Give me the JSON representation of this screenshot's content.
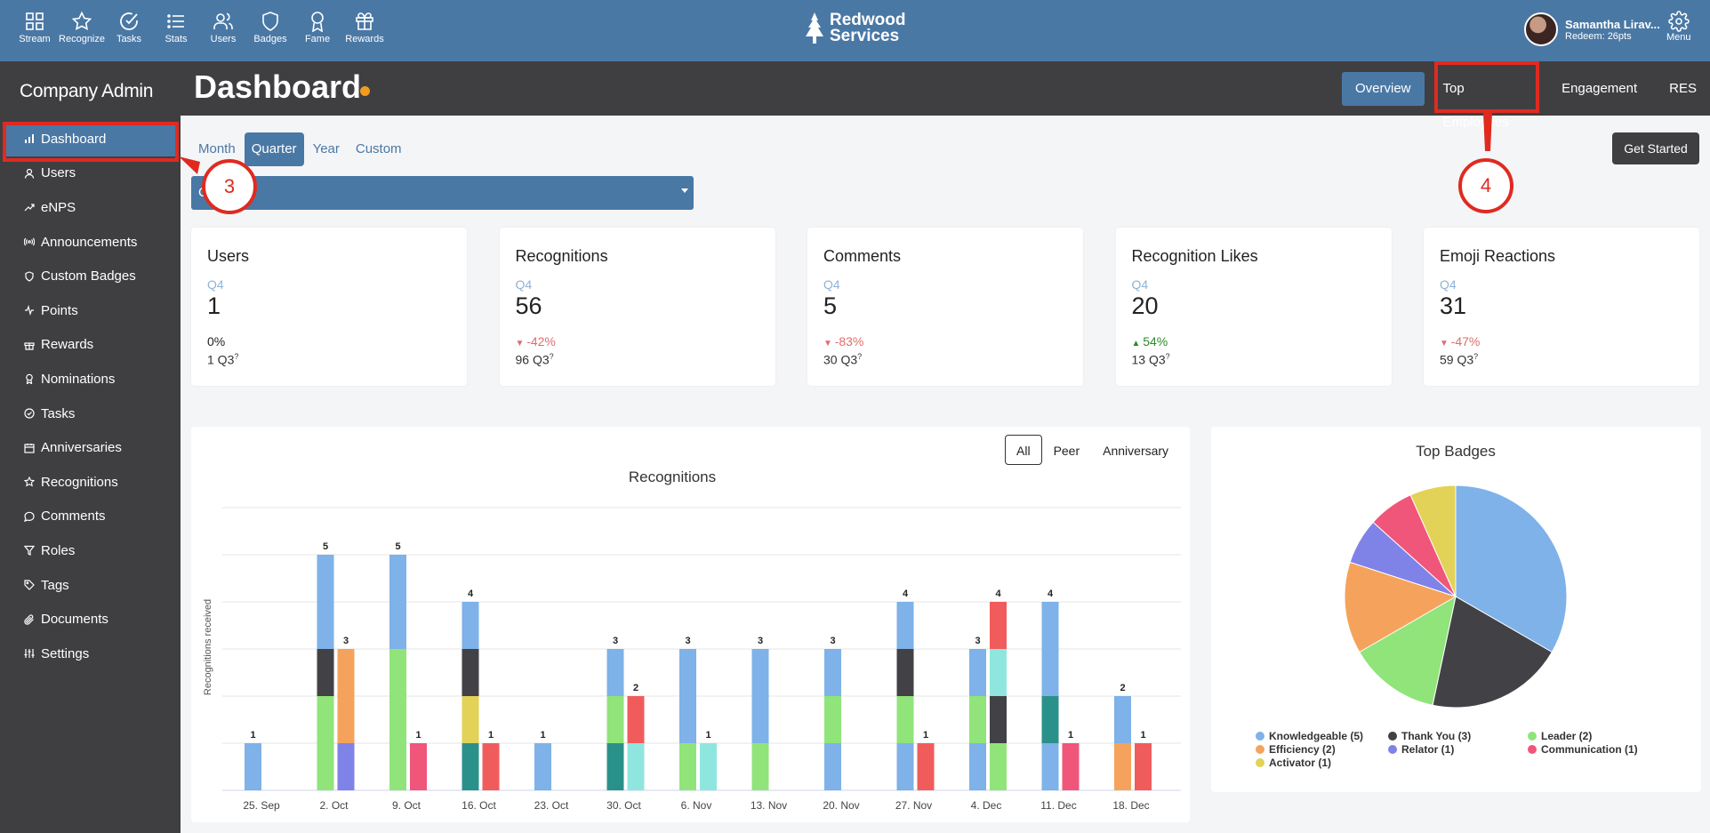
{
  "topnav": [
    {
      "label": "Stream",
      "icon": "grid-icon"
    },
    {
      "label": "Recognize",
      "icon": "star-icon"
    },
    {
      "label": "Tasks",
      "icon": "check-circle-icon"
    },
    {
      "label": "Stats",
      "icon": "list-icon"
    },
    {
      "label": "Users",
      "icon": "users-icon"
    },
    {
      "label": "Badges",
      "icon": "shield-icon"
    },
    {
      "label": "Fame",
      "icon": "award-icon"
    },
    {
      "label": "Rewards",
      "icon": "gift-icon"
    }
  ],
  "brand": {
    "line1": "Redwood",
    "line2": "Services"
  },
  "user": {
    "name": "Samantha Lirav...",
    "redeem": "Redeem: 26pts"
  },
  "menu_label": "Menu",
  "sidebar": {
    "title": "Company Admin",
    "items": [
      {
        "label": "Dashboard",
        "icon": "bar-chart-icon"
      },
      {
        "label": "Users",
        "icon": "user-icon"
      },
      {
        "label": "eNPS",
        "icon": "trend-icon"
      },
      {
        "label": "Announcements",
        "icon": "broadcast-icon"
      },
      {
        "label": "Custom Badges",
        "icon": "shield-icon"
      },
      {
        "label": "Points",
        "icon": "pulse-icon"
      },
      {
        "label": "Rewards",
        "icon": "gift-icon"
      },
      {
        "label": "Nominations",
        "icon": "award-icon"
      },
      {
        "label": "Tasks",
        "icon": "check-circle-icon"
      },
      {
        "label": "Anniversaries",
        "icon": "calendar-icon"
      },
      {
        "label": "Recognitions",
        "icon": "star-icon"
      },
      {
        "label": "Comments",
        "icon": "comment-icon"
      },
      {
        "label": "Roles",
        "icon": "filter-icon"
      },
      {
        "label": "Tags",
        "icon": "tag-icon"
      },
      {
        "label": "Documents",
        "icon": "paperclip-icon"
      },
      {
        "label": "Settings",
        "icon": "sliders-icon"
      }
    ]
  },
  "header": {
    "title": "Dashboard",
    "tabs": [
      "Overview",
      "Top Employees",
      "Engagement",
      "RES"
    ]
  },
  "period_tabs": [
    "Month",
    "Quarter",
    "Year",
    "Custom"
  ],
  "period_select_value": "C",
  "get_started_label": "Get Started",
  "cards": [
    {
      "title": "Users",
      "period": "Q4",
      "value": "1",
      "change": "0%",
      "prev": "1 Q3",
      "trend": "flat"
    },
    {
      "title": "Recognitions",
      "period": "Q4",
      "value": "56",
      "change": "-42%",
      "prev": "96 Q3",
      "trend": "down"
    },
    {
      "title": "Comments",
      "period": "Q4",
      "value": "5",
      "change": "-83%",
      "prev": "30 Q3",
      "trend": "down"
    },
    {
      "title": "Recognition Likes",
      "period": "Q4",
      "value": "20",
      "change": "54%",
      "prev": "13 Q3",
      "trend": "up"
    },
    {
      "title": "Emoji Reactions",
      "period": "Q4",
      "value": "31",
      "change": "-47%",
      "prev": "59 Q3",
      "trend": "down"
    }
  ],
  "chart_buttons": [
    "All",
    "Peer",
    "Anniversary"
  ],
  "annotations": {
    "callout_3": "3",
    "callout_4": "4"
  },
  "colors": {
    "brand_blue": "#4a78a5",
    "dark": "#3f3f42",
    "accent_dot": "#f39a1f",
    "annotation_red": "#e02a20"
  },
  "chart_data": [
    {
      "type": "bar",
      "title": "Recognitions",
      "ylabel": "Recognitions received",
      "ylim": [
        0,
        6
      ],
      "grid": true,
      "categories": [
        "25. Sep",
        "2. Oct",
        "9. Oct",
        "16. Oct",
        "23. Oct",
        "30. Oct",
        "6. Nov",
        "13. Nov",
        "20. Nov",
        "27. Nov",
        "4. Dec",
        "11. Dec",
        "18. Dec"
      ],
      "bars": [
        {
          "cat": 0,
          "slot": 0,
          "total": 1,
          "segments": [
            "#7eb2e8"
          ]
        },
        {
          "cat": 1,
          "slot": 0,
          "total": 5,
          "segments": [
            "#90e47a",
            "#90e47a",
            "#414146",
            "#7eb2e8",
            "#7eb2e8"
          ]
        },
        {
          "cat": 1,
          "slot": 1,
          "total": 3,
          "segments": [
            "#7f82e6",
            "#f5a35c",
            "#f5a35c"
          ]
        },
        {
          "cat": 2,
          "slot": 0,
          "total": 5,
          "segments": [
            "#90e47a",
            "#90e47a",
            "#90e47a",
            "#7eb2e8",
            "#7eb2e8"
          ]
        },
        {
          "cat": 2,
          "slot": 1,
          "total": 1,
          "segments": [
            "#f0567a"
          ]
        },
        {
          "cat": 3,
          "slot": 0,
          "total": 4,
          "segments": [
            "#2a918a",
            "#e2d257",
            "#414146",
            "#7eb2e8"
          ]
        },
        {
          "cat": 3,
          "slot": 1,
          "total": 1,
          "segments": [
            "#f05c5c"
          ]
        },
        {
          "cat": 4,
          "slot": 0,
          "total": 1,
          "segments": [
            "#7eb2e8"
          ]
        },
        {
          "cat": 5,
          "slot": 0,
          "total": 3,
          "segments": [
            "#2a918a",
            "#90e47a",
            "#7eb2e8"
          ]
        },
        {
          "cat": 5,
          "slot": 1,
          "total": 2,
          "segments": [
            "#8fe6de",
            "#f05c5c"
          ]
        },
        {
          "cat": 6,
          "slot": 0,
          "total": 3,
          "segments": [
            "#90e47a",
            "#7eb2e8",
            "#7eb2e8"
          ]
        },
        {
          "cat": 6,
          "slot": 1,
          "total": 1,
          "segments": [
            "#8fe6de"
          ]
        },
        {
          "cat": 7,
          "slot": 0,
          "total": 3,
          "segments": [
            "#90e47a",
            "#7eb2e8",
            "#7eb2e8"
          ]
        },
        {
          "cat": 8,
          "slot": 0,
          "total": 3,
          "segments": [
            "#7eb2e8",
            "#90e47a",
            "#7eb2e8"
          ]
        },
        {
          "cat": 9,
          "slot": 0,
          "total": 4,
          "segments": [
            "#7eb2e8",
            "#90e47a",
            "#414146",
            "#7eb2e8"
          ]
        },
        {
          "cat": 9,
          "slot": 1,
          "total": 1,
          "segments": [
            "#f05c5c"
          ]
        },
        {
          "cat": 10,
          "slot": 0,
          "total": 3,
          "segments": [
            "#7eb2e8",
            "#90e47a",
            "#7eb2e8"
          ]
        },
        {
          "cat": 10,
          "slot": 1,
          "total": 4,
          "segments": [
            "#90e47a",
            "#414146",
            "#8fe6de",
            "#f05c5c"
          ]
        },
        {
          "cat": 11,
          "slot": 0,
          "total": 4,
          "segments": [
            "#7eb2e8",
            "#2a918a",
            "#7eb2e8",
            "#7eb2e8"
          ]
        },
        {
          "cat": 11,
          "slot": 1,
          "total": 1,
          "segments": [
            "#f0567a"
          ]
        },
        {
          "cat": 12,
          "slot": 0,
          "total": 2,
          "segments": [
            "#f5a35c",
            "#7eb2e8"
          ]
        },
        {
          "cat": 12,
          "slot": 1,
          "total": 1,
          "segments": [
            "#f05c5c"
          ]
        }
      ]
    },
    {
      "type": "pie",
      "title": "Top Badges",
      "slices": [
        {
          "label": "Knowledgeable (5)",
          "value": 5,
          "color": "#7eb2e8"
        },
        {
          "label": "Thank You (3)",
          "value": 3,
          "color": "#414146"
        },
        {
          "label": "Leader (2)",
          "value": 2,
          "color": "#90e47a"
        },
        {
          "label": "Efficiency (2)",
          "value": 2,
          "color": "#f5a35c"
        },
        {
          "label": "Relator (1)",
          "value": 1,
          "color": "#7f82e6"
        },
        {
          "label": "Communication (1)",
          "value": 1,
          "color": "#f0567a"
        },
        {
          "label": "Activator (1)",
          "value": 1,
          "color": "#e2d257"
        }
      ],
      "legend": "bottom"
    }
  ]
}
